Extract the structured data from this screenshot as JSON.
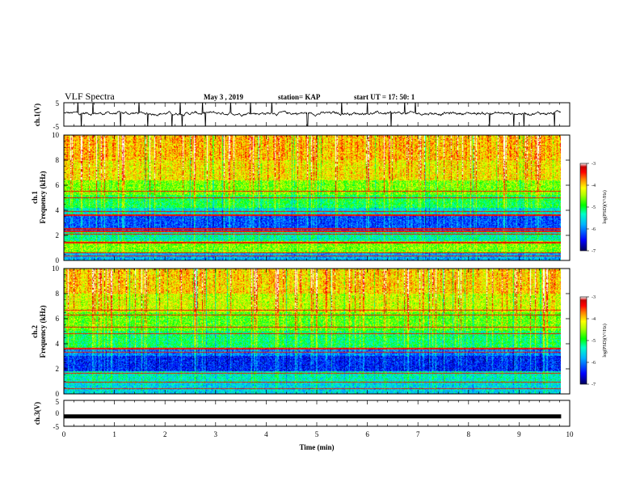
{
  "header": {
    "title": "VLF Spectra",
    "date": "May 3  , 2019",
    "station": "station= KAP",
    "start": "start  UT =   17: 50: 1"
  },
  "colors": {
    "palette": [
      "#00005a",
      "#0000ff",
      "#00b4ff",
      "#00ffc8",
      "#00ff00",
      "#b4ff00",
      "#ffff00",
      "#ff8000",
      "#ff0000",
      "#c80000",
      "#ffffff"
    ],
    "waveform": "#000000"
  },
  "chart_data": [
    {
      "type": "line",
      "name": "ch1-waveform",
      "ylabel": "ch.1(V)",
      "ylim": [
        -5,
        5
      ],
      "yticks": [
        "5",
        "-5"
      ],
      "xlim": [
        0,
        10
      ],
      "description_values": {
        "baseline_v": 0.5,
        "noise_amplitude_v": 1.5,
        "spike_amplitude_v": 5
      }
    },
    {
      "type": "heatmap",
      "name": "ch1-spectrogram",
      "ylabel": "ch.1\nFrequency (kHz)",
      "ylim": [
        0,
        10
      ],
      "yticks": [
        "0",
        "2",
        "4",
        "6",
        "8",
        "10"
      ],
      "xlim": [
        0,
        9.83
      ],
      "colorbar": {
        "label": "log(PSD)(V²/Hz)",
        "range": [
          -7,
          -3
        ],
        "ticks": [
          "-3",
          "-4",
          "-5",
          "-6",
          "-7"
        ]
      },
      "bands_khz": [
        {
          "from": 0.0,
          "to": 0.6,
          "level": -5.8
        },
        {
          "from": 0.6,
          "to": 1.5,
          "level": -4.6
        },
        {
          "from": 1.5,
          "to": 2.4,
          "level": -5.3
        },
        {
          "from": 2.4,
          "to": 3.6,
          "level": -6.2
        },
        {
          "from": 3.6,
          "to": 4.2,
          "level": -5.5
        },
        {
          "from": 4.2,
          "to": 5.2,
          "level": -5.0
        },
        {
          "from": 5.2,
          "to": 6.4,
          "level": -4.6
        },
        {
          "from": 6.4,
          "to": 8.0,
          "level": -4.1
        },
        {
          "from": 8.0,
          "to": 10.0,
          "level": -3.9
        }
      ],
      "lines_khz": [
        0.3,
        0.6,
        1.4,
        2.1,
        2.3,
        2.5,
        3.6,
        3.9,
        5.0,
        5.5
      ]
    },
    {
      "type": "heatmap",
      "name": "ch2-spectrogram",
      "ylabel": "ch.2\nFrequency (kHz)",
      "ylim": [
        0,
        10
      ],
      "yticks": [
        "0",
        "2",
        "4",
        "6",
        "8",
        "10"
      ],
      "xlim": [
        0,
        9.83
      ],
      "colorbar": {
        "label": "log(PSD)(V²/Hz)",
        "range": [
          -7,
          -3
        ],
        "ticks": [
          "-3",
          "-4",
          "-5",
          "-6",
          "-7"
        ]
      },
      "bands_khz": [
        {
          "from": 0.0,
          "to": 0.8,
          "level": -5.6
        },
        {
          "from": 0.8,
          "to": 1.8,
          "level": -5.4
        },
        {
          "from": 1.8,
          "to": 3.0,
          "level": -6.4
        },
        {
          "from": 3.0,
          "to": 3.6,
          "level": -6.0
        },
        {
          "from": 3.6,
          "to": 5.0,
          "level": -5.1
        },
        {
          "from": 5.0,
          "to": 6.5,
          "level": -4.7
        },
        {
          "from": 6.5,
          "to": 8.0,
          "level": -4.3
        },
        {
          "from": 8.0,
          "to": 10.0,
          "level": -4.0
        }
      ],
      "lines_khz": [
        0.4,
        0.9,
        1.6,
        3.3,
        3.6,
        4.8,
        5.3,
        6.3,
        6.7
      ]
    },
    {
      "type": "line",
      "name": "ch3-waveform",
      "ylabel": "ch.3(V)",
      "ylim": [
        -5,
        5
      ],
      "yticks": [
        "5",
        "0",
        "-5"
      ],
      "xlim": [
        0,
        9.83
      ],
      "description_values": {
        "constant_v": -1.2
      }
    }
  ],
  "xaxis": {
    "label": "Time  (min)",
    "ticks": [
      "0",
      "1",
      "2",
      "3",
      "4",
      "5",
      "6",
      "7",
      "8",
      "9",
      "10"
    ]
  }
}
